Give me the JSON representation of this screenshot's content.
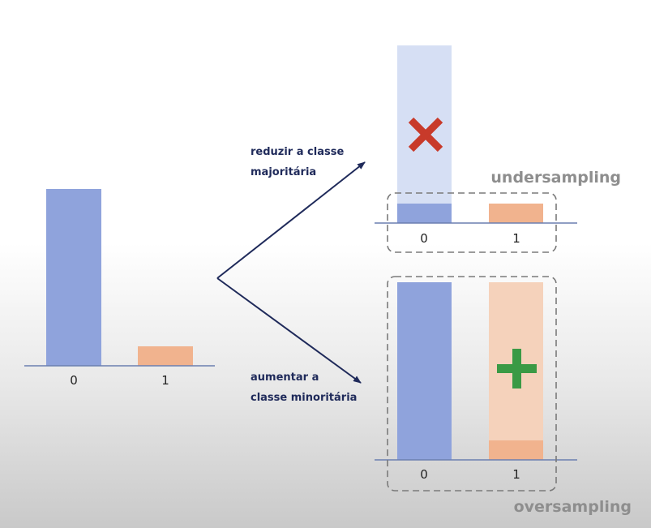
{
  "colors": {
    "class0": "#8fa3dc",
    "class0_faded": "#d6dff4",
    "class1": "#f1b38e",
    "class1_faded": "#f5d2bb",
    "arrow": "#1f2a5a",
    "cross": "#c83a2a",
    "plus": "#3a9a45",
    "method_label": "#8e8e8e",
    "axis": "#6b7fb0"
  },
  "original": {
    "tick_labels": [
      "0",
      "1"
    ],
    "relative_heights": [
      1.0,
      0.11
    ]
  },
  "undersampling": {
    "label": "undersampling",
    "arrow_label_line1": "reduzir a classe",
    "arrow_label_line2": "majoritária",
    "tick_labels": [
      "0",
      "1"
    ],
    "removed_icon": "cross-icon"
  },
  "oversampling": {
    "label": "oversampling",
    "arrow_label_line1": "aumentar a",
    "arrow_label_line2": "classe minoritária",
    "tick_labels": [
      "0",
      "1"
    ],
    "added_icon": "plus-icon"
  }
}
